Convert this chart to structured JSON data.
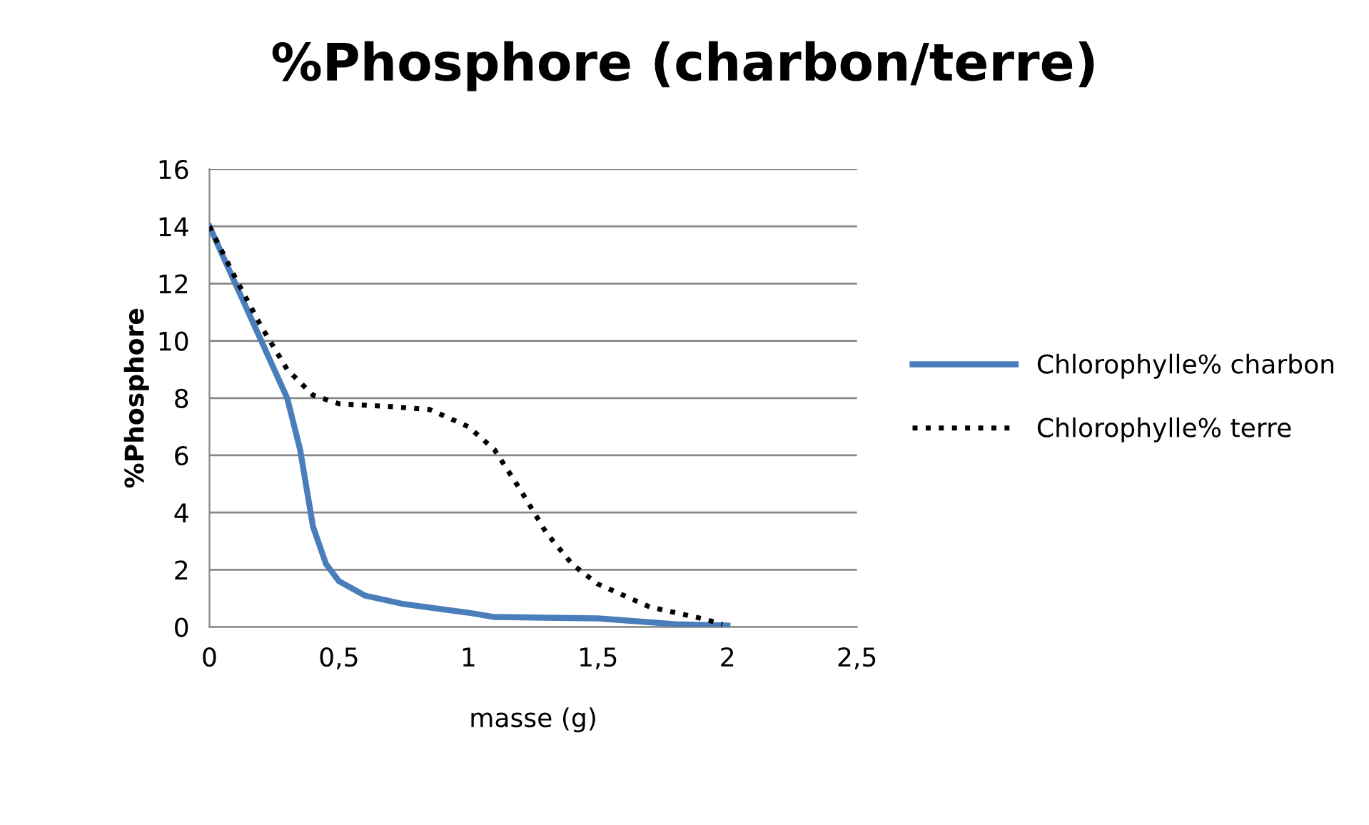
{
  "chart_data": {
    "type": "line",
    "title": "%Phosphore (charbon/terre)",
    "xlabel": "masse (g)",
    "ylabel": "%Phosphore",
    "xlim": [
      0,
      2.5
    ],
    "ylim": [
      0,
      16
    ],
    "xticks": [
      0,
      {
        "value": 0.5,
        "label": "0,5"
      },
      1,
      {
        "value": 1.5,
        "label": "1,5"
      },
      2,
      {
        "value": 2.5,
        "label": "2,5"
      }
    ],
    "yticks": [
      0,
      2,
      4,
      6,
      8,
      10,
      12,
      14,
      16
    ],
    "grid": "y",
    "legend": "right",
    "marker": "none",
    "series": [
      {
        "name": "Chlorophylle% charbon",
        "color": "#4a7ebb",
        "line_style": "solid",
        "x": [
          0,
          0.1,
          0.2,
          0.3,
          0.35,
          0.4,
          0.45,
          0.5,
          0.6,
          0.75,
          1.0,
          1.1,
          1.5,
          1.8,
          2.0
        ],
        "values": [
          14,
          12,
          10,
          8,
          6.2,
          3.5,
          2.2,
          1.6,
          1.1,
          0.8,
          0.5,
          0.35,
          0.3,
          0.1,
          0.05
        ]
      },
      {
        "name": "Chlorophylle% terre",
        "color": "#000000",
        "line_style": "dotted",
        "x": [
          0,
          0.1,
          0.2,
          0.3,
          0.4,
          0.5,
          0.7,
          0.85,
          1.0,
          1.1,
          1.2,
          1.3,
          1.4,
          1.5,
          1.7,
          1.9,
          1.98
        ],
        "values": [
          14,
          12.2,
          10.5,
          9,
          8.1,
          7.8,
          7.7,
          7.6,
          7,
          6.2,
          4.8,
          3.3,
          2.2,
          1.5,
          0.7,
          0.3,
          0.1
        ]
      }
    ]
  }
}
